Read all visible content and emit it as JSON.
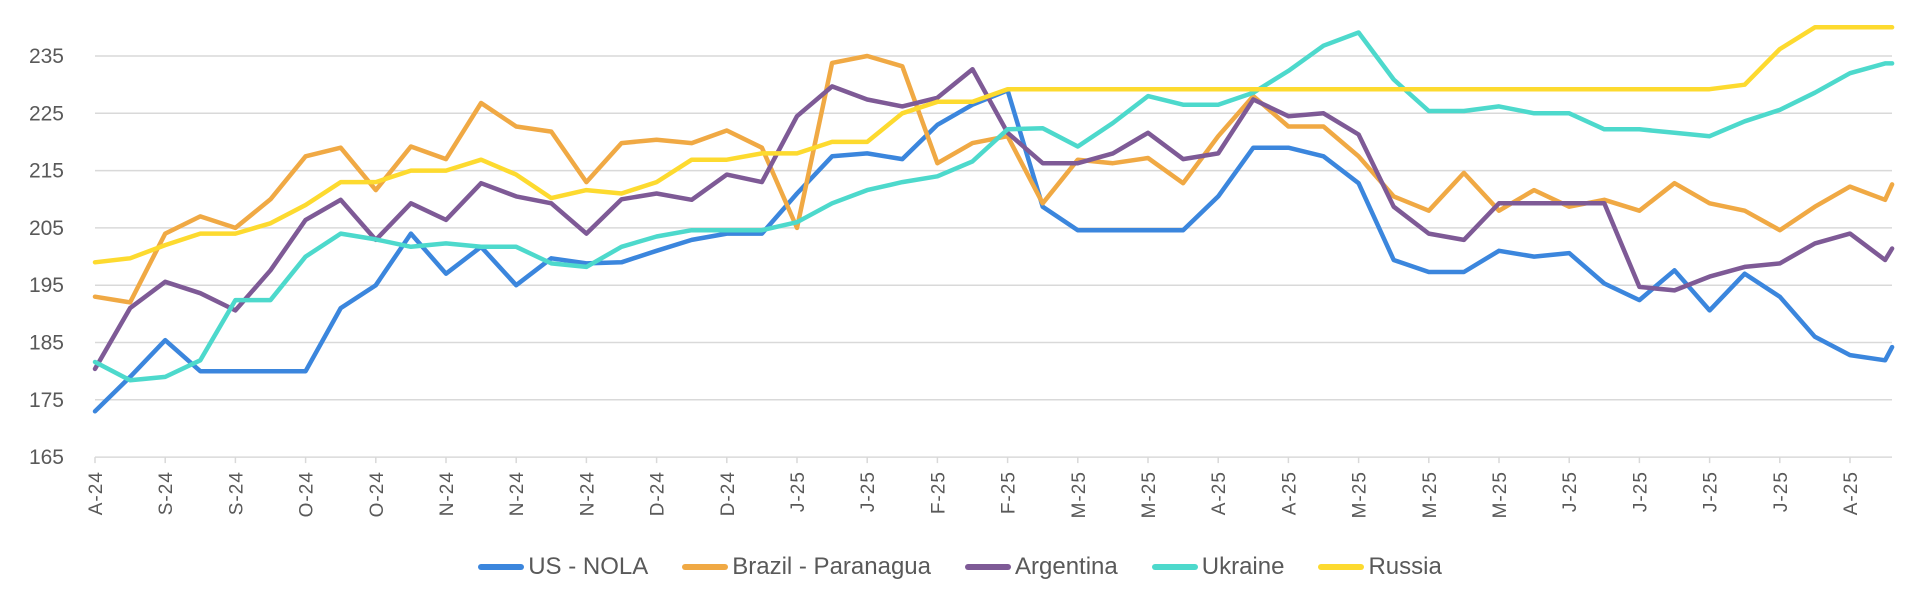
{
  "chart_data": {
    "type": "line",
    "title": "",
    "xlabel": "",
    "ylabel": "",
    "ylim": [
      165,
      240
    ],
    "yticks": [
      165,
      175,
      185,
      195,
      205,
      215,
      225,
      235
    ],
    "grid": true,
    "legend_position": "bottom",
    "x_tick_labels": [
      "A-24",
      "S-24",
      "S-24",
      "O-24",
      "O-24",
      "N-24",
      "N-24",
      "N-24",
      "D-24",
      "D-24",
      "J-25",
      "J-25",
      "F-25",
      "F-25",
      "M-25",
      "M-25",
      "A-25",
      "A-25",
      "M-25",
      "M-25",
      "M-25",
      "J-25",
      "J-25",
      "J-25",
      "J-25",
      "A-25"
    ],
    "x": [
      0,
      0.5,
      1,
      1.5,
      2,
      2.5,
      3,
      3.5,
      4,
      4.5,
      5,
      5.5,
      6,
      6.5,
      7,
      7.5,
      8,
      8.5,
      9,
      9.5,
      10,
      10.5,
      11,
      11.5,
      12,
      12.5,
      13,
      13.5,
      14,
      14.5,
      15,
      15.5,
      16,
      16.5,
      17,
      17.5,
      18,
      18.5,
      19,
      19.5,
      20,
      20.5,
      21,
      21.5,
      22,
      22.5,
      23,
      23.5,
      24,
      24.5,
      25,
      25.5,
      25.6
    ],
    "series": [
      {
        "name": "US - NOLA",
        "color": "#3B86DD",
        "values": [
          173,
          179,
          185.4,
          180,
          180,
          180,
          180,
          191,
          195,
          204,
          197,
          201.7,
          195,
          199.7,
          198.8,
          199,
          201,
          202.9,
          204,
          204,
          211,
          217.5,
          218,
          217,
          223,
          226.5,
          229,
          208.7,
          204.6,
          204.6,
          204.6,
          204.6,
          210.5,
          219,
          219,
          217.5,
          212.8,
          199.4,
          197.3,
          197.3,
          201,
          200,
          200.6,
          195.3,
          192.4,
          197.6,
          190.6,
          197,
          193,
          186,
          182.8,
          181.9,
          184.2
        ]
      },
      {
        "name": "Brazil - Paranagua",
        "color": "#F0A944",
        "values": [
          193,
          192,
          204,
          207,
          205,
          210,
          217.5,
          219,
          211.6,
          219.2,
          217,
          226.8,
          222.7,
          221.8,
          213,
          219.8,
          220.4,
          219.8,
          222,
          219,
          205,
          233.8,
          235,
          233.2,
          216.3,
          219.8,
          221,
          209.3,
          216.9,
          216.3,
          217.2,
          212.8,
          221,
          228,
          222.7,
          222.7,
          217.5,
          210.5,
          208,
          214.6,
          208,
          211.6,
          208.7,
          209.9,
          208,
          212.8,
          209.3,
          208,
          204.6,
          208.7,
          212.2,
          209.9,
          212.6
        ]
      },
      {
        "name": "Argentina",
        "color": "#7E5A96",
        "values": [
          180.4,
          191,
          195.6,
          193.6,
          190.6,
          197.6,
          206.4,
          209.9,
          202.9,
          209.3,
          206.4,
          212.8,
          210.5,
          209.3,
          204,
          210,
          211,
          209.9,
          214.3,
          213,
          224.5,
          229.7,
          227.4,
          226.2,
          227.7,
          232.7,
          221.6,
          216.3,
          216.3,
          218,
          221.6,
          217,
          218,
          227.4,
          224.5,
          225,
          221.3,
          208.7,
          204,
          202.9,
          209.3,
          209.3,
          209.3,
          209.3,
          194.7,
          194.1,
          196.5,
          198.2,
          198.8,
          202.3,
          204,
          199.4,
          201.4
        ]
      },
      {
        "name": "Ukraine",
        "color": "#4DD9CC",
        "values": [
          181.6,
          178.4,
          179,
          181.9,
          192.4,
          192.4,
          200,
          204,
          203,
          201.7,
          202.3,
          201.7,
          201.7,
          198.8,
          198.2,
          201.7,
          203.5,
          204.6,
          204.6,
          204.6,
          206,
          209.3,
          211.6,
          213,
          214,
          216.6,
          222.2,
          222.4,
          219.2,
          223.3,
          228,
          226.5,
          226.5,
          228.6,
          232.4,
          236.8,
          239.1,
          230.9,
          225.4,
          225.4,
          226.2,
          225,
          225,
          222.2,
          222.2,
          221.6,
          221,
          223.6,
          225.6,
          228.6,
          232,
          233.7,
          233.7
        ]
      },
      {
        "name": "Russia",
        "color": "#FDDA2F",
        "values": [
          199,
          199.7,
          202,
          204,
          204,
          205.8,
          209,
          213,
          213,
          215,
          215,
          216.9,
          214.3,
          210.2,
          211.6,
          211,
          213,
          216.9,
          216.9,
          218,
          218,
          220,
          220,
          225,
          227,
          227,
          229.2,
          229.2,
          229.2,
          229.2,
          229.2,
          229.2,
          229.2,
          229.2,
          229.2,
          229.2,
          229.2,
          229.2,
          229.2,
          229.2,
          229.2,
          229.2,
          229.2,
          229.2,
          229.2,
          229.2,
          229.2,
          230,
          236.2,
          240,
          240,
          240,
          240
        ]
      }
    ]
  }
}
